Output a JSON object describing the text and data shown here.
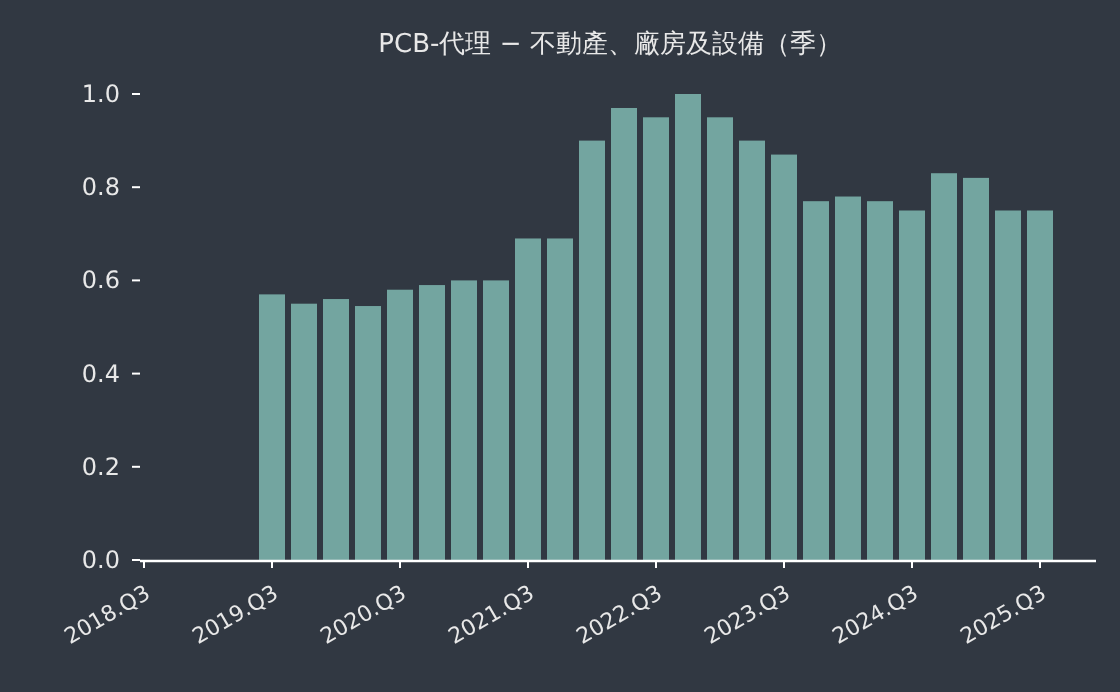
{
  "chart_data": {
    "type": "bar",
    "title": "PCB-代理 − 不動產、廠房及設備（季）",
    "categories": [
      "2018.Q3",
      null,
      null,
      null,
      "2019.Q3",
      null,
      null,
      null,
      "2020.Q3",
      null,
      null,
      null,
      "2021.Q3",
      null,
      null,
      null,
      "2022.Q3",
      null,
      null,
      null,
      "2023.Q3",
      null,
      null,
      null,
      "2024.Q3",
      null,
      null,
      null,
      "2025.Q3"
    ],
    "values": [
      null,
      null,
      null,
      null,
      0.57,
      0.55,
      0.56,
      0.545,
      0.58,
      0.59,
      0.6,
      0.6,
      0.69,
      0.69,
      0.9,
      0.97,
      0.95,
      1.0,
      0.95,
      0.9,
      0.87,
      0.77,
      0.78,
      0.77,
      0.75,
      0.83,
      0.82,
      0.75,
      0.75
    ],
    "color": "#73a5a0",
    "ylim": [
      0,
      1.0
    ],
    "yticks": [
      {
        "value": 0,
        "label": "0.0"
      },
      {
        "value": 0.2,
        "label": "0.2"
      },
      {
        "value": 0.4,
        "label": "0.4"
      },
      {
        "value": 0.6,
        "label": "0.6"
      },
      {
        "value": 0.8,
        "label": "0.8"
      },
      {
        "value": 1.0,
        "label": "1.0"
      }
    ]
  }
}
